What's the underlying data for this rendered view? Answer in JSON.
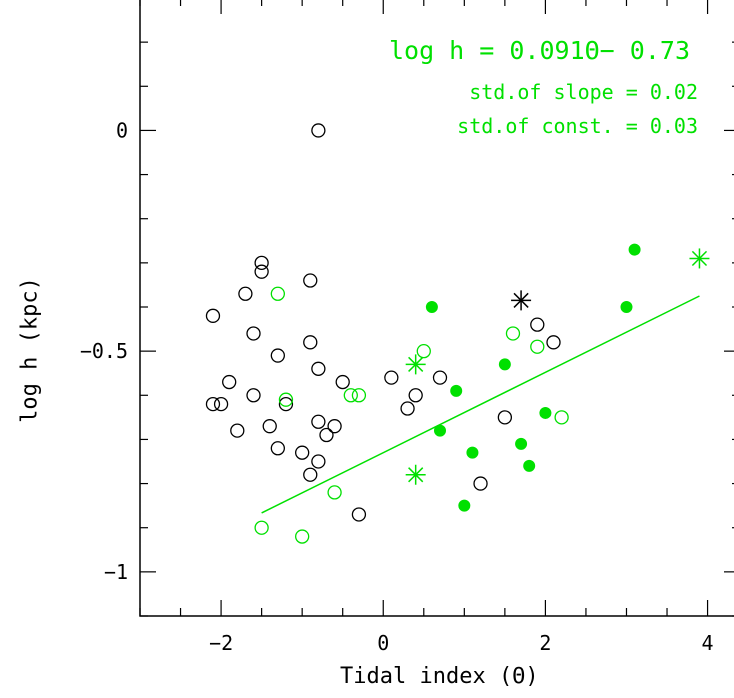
{
  "chart_data": {
    "type": "scatter",
    "title": "",
    "xlabel": "Tidal index (Θ)",
    "ylabel": "log h (kpc)",
    "xlim": [
      -3,
      4.4
    ],
    "ylim": [
      -1.1,
      0.3
    ],
    "x_ticks": [
      -2,
      0,
      2,
      4
    ],
    "x_tick_labels": [
      "−2",
      "0",
      "2",
      "4"
    ],
    "y_ticks": [
      -1,
      -0.5,
      0
    ],
    "y_tick_labels": [
      "−1",
      "−0.5",
      "0"
    ],
    "grid": false,
    "annotations": {
      "equation": "log h = 0.091Θ− 0.73",
      "slope_std": "std.of slope = 0.02",
      "const_std": "std.of const. = 0.03"
    },
    "fit_line": {
      "slope": 0.091,
      "intercept": -0.73,
      "x_range": [
        -1.5,
        3.9
      ],
      "color": "#00e000"
    },
    "colors": {
      "black": "#000000",
      "green": "#00e000"
    },
    "series": [
      {
        "marker": "open-circle",
        "color": "#000000",
        "points": [
          [
            -0.8,
            0.0
          ],
          [
            -1.5,
            -0.3
          ],
          [
            -1.5,
            -0.32
          ],
          [
            -1.7,
            -0.37
          ],
          [
            -0.9,
            -0.34
          ],
          [
            -2.1,
            -0.42
          ],
          [
            -1.6,
            -0.46
          ],
          [
            -0.9,
            -0.48
          ],
          [
            -1.3,
            -0.51
          ],
          [
            -0.8,
            -0.54
          ],
          [
            -1.9,
            -0.57
          ],
          [
            -0.5,
            -0.57
          ],
          [
            -1.6,
            -0.6
          ],
          [
            -2.1,
            -0.62
          ],
          [
            -2.0,
            -0.62
          ],
          [
            -1.2,
            -0.62
          ],
          [
            -1.4,
            -0.67
          ],
          [
            -0.8,
            -0.66
          ],
          [
            -0.6,
            -0.67
          ],
          [
            -0.7,
            -0.69
          ],
          [
            -1.8,
            -0.68
          ],
          [
            -1.3,
            -0.72
          ],
          [
            -1.0,
            -0.73
          ],
          [
            -0.8,
            -0.75
          ],
          [
            -0.9,
            -0.78
          ],
          [
            -0.3,
            -0.87
          ],
          [
            0.1,
            -0.56
          ],
          [
            0.7,
            -0.56
          ],
          [
            0.4,
            -0.6
          ],
          [
            0.3,
            -0.63
          ],
          [
            1.9,
            -0.44
          ],
          [
            2.1,
            -0.48
          ],
          [
            1.5,
            -0.65
          ],
          [
            1.2,
            -0.8
          ]
        ]
      },
      {
        "marker": "open-circle",
        "color": "#00e000",
        "points": [
          [
            -1.3,
            -0.37
          ],
          [
            -1.2,
            -0.61
          ],
          [
            -0.4,
            -0.6
          ],
          [
            -0.3,
            -0.6
          ],
          [
            -0.6,
            -0.82
          ],
          [
            -1.5,
            -0.9
          ],
          [
            -1.0,
            -0.92
          ],
          [
            0.5,
            -0.5
          ],
          [
            1.6,
            -0.46
          ],
          [
            1.9,
            -0.49
          ],
          [
            2.2,
            -0.65
          ]
        ]
      },
      {
        "marker": "filled-circle",
        "color": "#00e000",
        "points": [
          [
            0.6,
            -0.4
          ],
          [
            0.9,
            -0.59
          ],
          [
            0.7,
            -0.68
          ],
          [
            1.1,
            -0.73
          ],
          [
            1.0,
            -0.85
          ],
          [
            1.5,
            -0.53
          ],
          [
            1.7,
            -0.71
          ],
          [
            1.8,
            -0.76
          ],
          [
            2.0,
            -0.64
          ],
          [
            3.0,
            -0.4
          ],
          [
            3.1,
            -0.27
          ]
        ]
      },
      {
        "marker": "asterisk",
        "color": "#000000",
        "points": [
          [
            1.7,
            -0.385
          ]
        ]
      },
      {
        "marker": "asterisk",
        "color": "#00e000",
        "points": [
          [
            0.4,
            -0.53
          ],
          [
            0.4,
            -0.78
          ],
          [
            3.9,
            -0.29
          ]
        ]
      }
    ]
  }
}
